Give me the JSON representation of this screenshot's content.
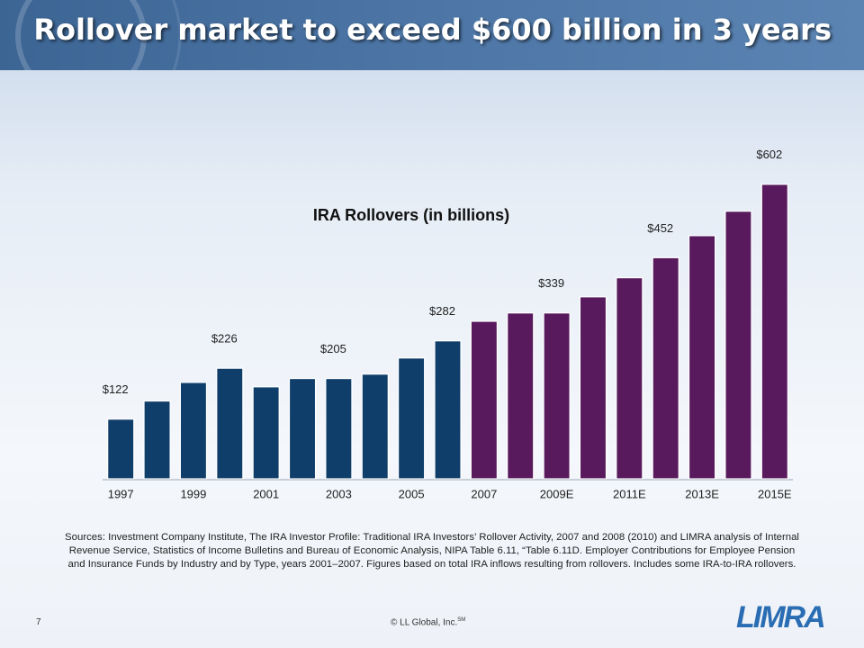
{
  "slide": {
    "title": "Rollover market to exceed $600 billion in 3 years",
    "sources": "Sources: Investment Company Institute, The IRA Investor Profile: Traditional IRA Investors’ Rollover Activity, 2007 and 2008  (2010) and LIMRA analysis of Internal Revenue Service, Statistics of Income Bulletins and Bureau of Economic Analysis, NIPA Table 6.11, “Table 6.11D. Employer Contributions for Employee Pension and Insurance Funds by Industry and by Type, years 2001–2007.  Figures based on total IRA inflows resulting from rollovers. Includes some IRA-to-IRA  rollovers.",
    "page": "7",
    "copyright": "© LL Global, Inc.",
    "copyright_mark": "SM",
    "logo": "LIMRA"
  },
  "chart_data": {
    "type": "bar",
    "title": "IRA Rollovers (in billions)",
    "categories": [
      "1997",
      null,
      "1999",
      null,
      "2001",
      null,
      "2003",
      null,
      "2005",
      null,
      "2007",
      null,
      "2009E",
      null,
      "2011E",
      null,
      "2013E",
      null,
      "2015E"
    ],
    "values": [
      122,
      159,
      197,
      226,
      188,
      205,
      205,
      214,
      247,
      282,
      322,
      339,
      339,
      372,
      411,
      452,
      497,
      547,
      602
    ],
    "value_labels": [
      "$122",
      null,
      null,
      "$226",
      null,
      null,
      "$205",
      null,
      null,
      "$282",
      null,
      null,
      "$339",
      null,
      null,
      "$452",
      null,
      null,
      "$602"
    ],
    "colors": [
      "#103e6a",
      "#103e6a",
      "#103e6a",
      "#103e6a",
      "#103e6a",
      "#103e6a",
      "#103e6a",
      "#103e6a",
      "#103e6a",
      "#103e6a",
      "#581a5d",
      "#581a5d",
      "#581a5d",
      "#581a5d",
      "#581a5d",
      "#581a5d",
      "#581a5d",
      "#581a5d",
      "#581a5d"
    ],
    "ylim": [
      0,
      620
    ]
  }
}
